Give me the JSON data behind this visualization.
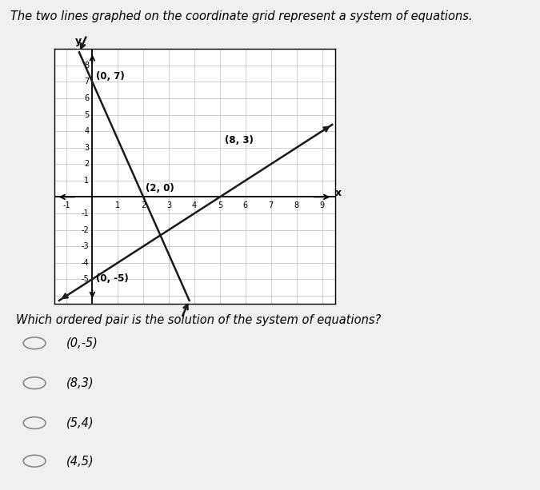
{
  "title": "The two lines graphed on the coordinate grid represent a system of equations.",
  "question": "Which ordered pair is the solution of the system of equations?",
  "choices": [
    "(0,-5)",
    "(8,3)",
    "(5,4)",
    "(4,5)"
  ],
  "line1": {
    "points": [
      [
        0,
        7
      ],
      [
        2,
        0
      ]
    ],
    "label1": "(0, 7)",
    "label2": "(2, 0)",
    "slope": -3.5,
    "intercept": 7
  },
  "line2": {
    "points": [
      [
        0,
        -5
      ],
      [
        8,
        3
      ]
    ],
    "label1": "(0, -5)",
    "label2": "(8, 3)",
    "slope": 1.0,
    "intercept": -5
  },
  "xlim": [
    -1.5,
    9.5
  ],
  "ylim": [
    -6.5,
    9.0
  ],
  "xmin_tick": -1,
  "xmax_tick": 9,
  "ymin_tick": -5,
  "ymax_tick": 8,
  "grid_color": "#c8c8c8",
  "background_color": "#f0f0f0",
  "plot_bg_color": "#ffffff",
  "line_color": "#1a1a1a",
  "title_fontsize": 10.5,
  "question_fontsize": 10.5,
  "choice_fontsize": 10.5,
  "label_fontsize": 8.5
}
